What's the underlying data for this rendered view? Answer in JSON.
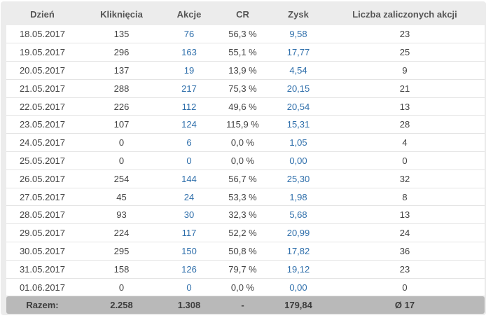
{
  "table": {
    "headers": {
      "day": "Dzień",
      "clicks": "Kliknięcia",
      "actions": "Akcje",
      "cr": "CR",
      "profit": "Zysk",
      "approved": "Liczba zaliczonych akcji"
    },
    "rows": [
      {
        "day": "18.05.2017",
        "clicks": "135",
        "actions": "76",
        "cr": "56,3 %",
        "profit": "9,58",
        "approved": "23"
      },
      {
        "day": "19.05.2017",
        "clicks": "296",
        "actions": "163",
        "cr": "55,1 %",
        "profit": "17,77",
        "approved": "25"
      },
      {
        "day": "20.05.2017",
        "clicks": "137",
        "actions": "19",
        "cr": "13,9 %",
        "profit": "4,54",
        "approved": "9"
      },
      {
        "day": "21.05.2017",
        "clicks": "288",
        "actions": "217",
        "cr": "75,3 %",
        "profit": "20,15",
        "approved": "21"
      },
      {
        "day": "22.05.2017",
        "clicks": "226",
        "actions": "112",
        "cr": "49,6 %",
        "profit": "20,54",
        "approved": "13"
      },
      {
        "day": "23.05.2017",
        "clicks": "107",
        "actions": "124",
        "cr": "115,9 %",
        "profit": "15,31",
        "approved": "28"
      },
      {
        "day": "24.05.2017",
        "clicks": "0",
        "actions": "6",
        "cr": "0,0 %",
        "profit": "1,05",
        "approved": "4"
      },
      {
        "day": "25.05.2017",
        "clicks": "0",
        "actions": "0",
        "cr": "0,0 %",
        "profit": "0,00",
        "approved": "0"
      },
      {
        "day": "26.05.2017",
        "clicks": "254",
        "actions": "144",
        "cr": "56,7 %",
        "profit": "25,30",
        "approved": "32"
      },
      {
        "day": "27.05.2017",
        "clicks": "45",
        "actions": "24",
        "cr": "53,3 %",
        "profit": "1,98",
        "approved": "8"
      },
      {
        "day": "28.05.2017",
        "clicks": "93",
        "actions": "30",
        "cr": "32,3 %",
        "profit": "5,68",
        "approved": "13"
      },
      {
        "day": "29.05.2017",
        "clicks": "224",
        "actions": "117",
        "cr": "52,2 %",
        "profit": "20,99",
        "approved": "24"
      },
      {
        "day": "30.05.2017",
        "clicks": "295",
        "actions": "150",
        "cr": "50,8 %",
        "profit": "17,82",
        "approved": "36"
      },
      {
        "day": "31.05.2017",
        "clicks": "158",
        "actions": "126",
        "cr": "79,7 %",
        "profit": "19,12",
        "approved": "23"
      },
      {
        "day": "01.06.2017",
        "clicks": "0",
        "actions": "0",
        "cr": "0,0 %",
        "profit": "0,00",
        "approved": "0"
      }
    ],
    "totals": {
      "label": "Razem:",
      "clicks": "2.258",
      "actions": "1.308",
      "cr": "-",
      "profit": "179,84",
      "approved": "Ø 17"
    }
  },
  "colors": {
    "link": "#2f6fab",
    "text": "#444444",
    "header_text": "#555555",
    "panel_bg": "#ececec",
    "footer_bg": "#b9b9b9"
  }
}
